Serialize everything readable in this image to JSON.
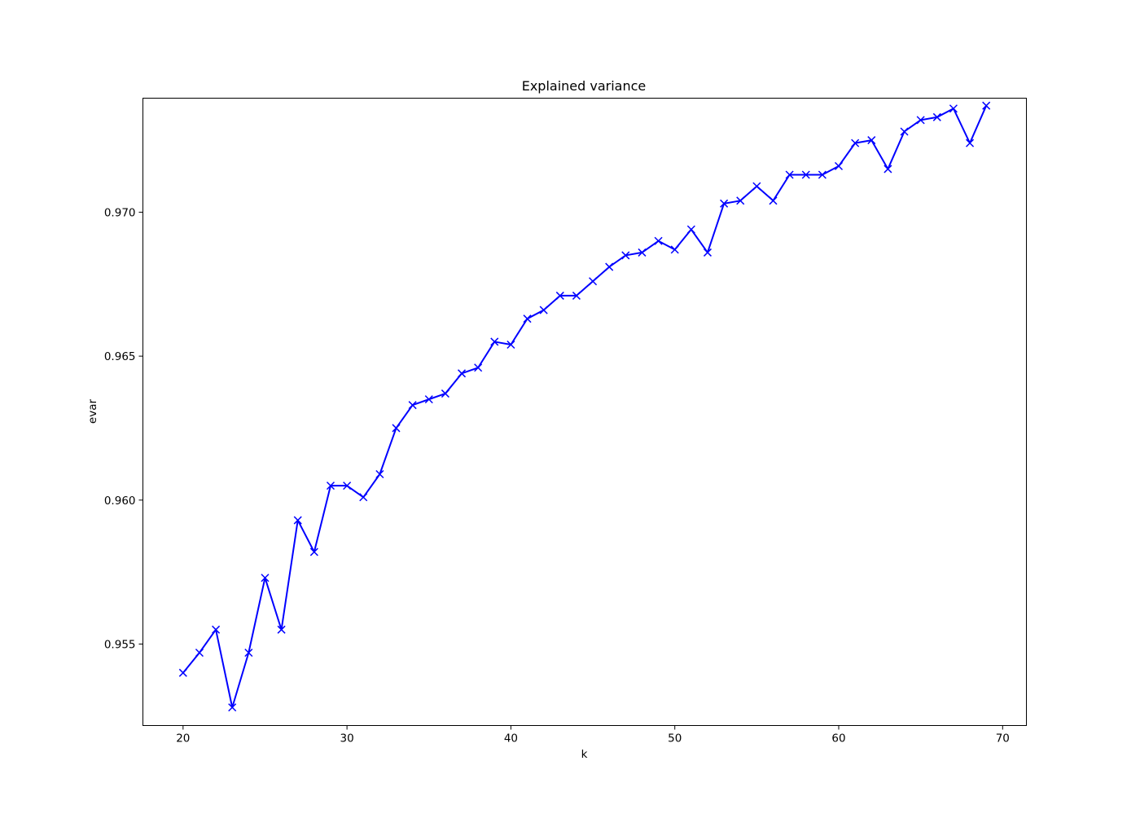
{
  "chart_data": {
    "type": "line",
    "title": "Explained variance",
    "xlabel": "k",
    "ylabel": "evar",
    "xlim": [
      17.55,
      71.45
    ],
    "ylim": [
      0.95217,
      0.97396
    ],
    "xticks": [
      20,
      30,
      40,
      50,
      60,
      70
    ],
    "yticks": [
      0.955,
      0.96,
      0.965,
      0.97
    ],
    "ytick_labels": [
      "0.955",
      "0.960",
      "0.965",
      "0.970"
    ],
    "grid": false,
    "legend": "none",
    "series": [
      {
        "color": "#0000ff",
        "marker": "x",
        "x": [
          20,
          21,
          22,
          23,
          24,
          25,
          26,
          27,
          28,
          29,
          30,
          31,
          32,
          33,
          34,
          35,
          36,
          37,
          38,
          39,
          40,
          41,
          42,
          43,
          44,
          45,
          46,
          47,
          48,
          49,
          50,
          51,
          52,
          53,
          54,
          55,
          56,
          57,
          58,
          59,
          60,
          61,
          62,
          63,
          64,
          65,
          66,
          67,
          68,
          69
        ],
        "y": [
          0.954,
          0.9547,
          0.9555,
          0.9528,
          0.9547,
          0.9573,
          0.9555,
          0.9593,
          0.9582,
          0.9605,
          0.9605,
          0.9601,
          0.9609,
          0.9625,
          0.9633,
          0.9635,
          0.9637,
          0.9644,
          0.9646,
          0.9655,
          0.9654,
          0.9663,
          0.9666,
          0.9671,
          0.9671,
          0.9676,
          0.9681,
          0.9685,
          0.9686,
          0.969,
          0.9687,
          0.9694,
          0.9686,
          0.9703,
          0.9704,
          0.9709,
          0.9704,
          0.9713,
          0.9713,
          0.9713,
          0.9716,
          0.9724,
          0.9725,
          0.9715,
          0.9728,
          0.9732,
          0.9733,
          0.9736,
          0.9724,
          0.9737
        ]
      }
    ]
  }
}
